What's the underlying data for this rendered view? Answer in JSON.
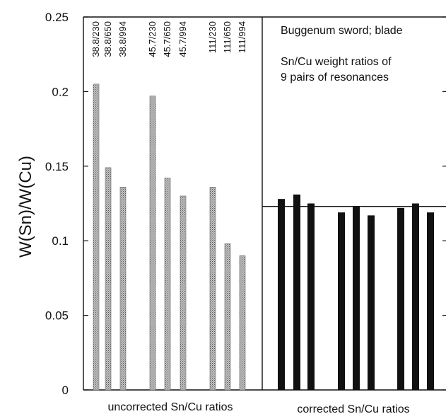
{
  "chart_data": {
    "type": "bar",
    "ylabel": "W(Sn)/W(Cu)",
    "ylim": [
      0,
      0.25
    ],
    "yticks": [
      "0",
      "0.05",
      "0.1",
      "0.15",
      "0.2",
      "0.25"
    ],
    "grid": false,
    "panels": [
      {
        "xlabel": "uncorrected Sn/Cu ratios",
        "categories": [
          "38.8/230",
          "38.8/650",
          "38.8/994",
          "45.7/230",
          "45.7/650",
          "45.7/994",
          "111/230",
          "111/650",
          "111/994"
        ],
        "values": [
          0.205,
          0.149,
          0.136,
          0.197,
          0.142,
          0.13,
          0.136,
          0.098,
          0.09
        ],
        "bar_style": "gray"
      },
      {
        "xlabel": "corrected Sn/Cu ratios",
        "values": [
          0.128,
          0.131,
          0.125,
          0.119,
          0.123,
          0.117,
          0.122,
          0.125,
          0.119
        ],
        "bar_style": "black",
        "reference_line": 0.123
      }
    ],
    "annotations": {
      "title": "Buggenum sword; blade",
      "subtitle_line1": "Sn/Cu weight ratios of",
      "subtitle_line2": "9 pairs of resonances"
    }
  }
}
